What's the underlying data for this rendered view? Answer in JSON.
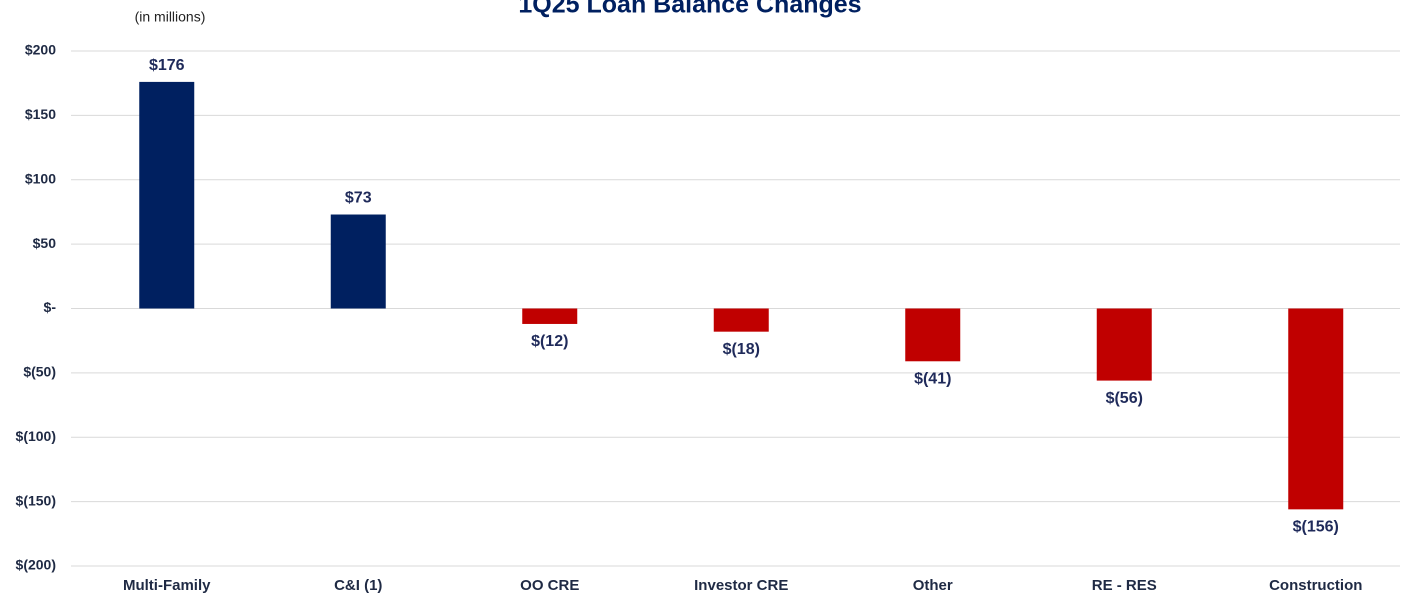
{
  "chart_data": {
    "type": "bar",
    "title": "1Q25 Loan Balance Changes",
    "subtitle": "(in millions)",
    "categories": [
      "Multi-Family",
      "C&I (1)",
      "OO CRE",
      "Investor CRE",
      "Other",
      "RE - RES",
      "Construction"
    ],
    "values": [
      176,
      73,
      -12,
      -18,
      -41,
      -56,
      -156
    ],
    "value_labels": [
      "$176",
      "$73",
      "$(12)",
      "$(18)",
      "$(41)",
      "$(56)",
      "$(156)"
    ],
    "color": "#002060",
    "negative_color": "#c00000",
    "ylim": [
      -200,
      200
    ],
    "yticks": [
      {
        "value": -200,
        "label": "$(200)"
      },
      {
        "value": -150,
        "label": "$(150)"
      },
      {
        "value": -100,
        "label": "$(100)"
      },
      {
        "value": -50,
        "label": "$(50)"
      },
      {
        "value": 0,
        "label": "$-"
      },
      {
        "value": 50,
        "label": "$50"
      },
      {
        "value": 100,
        "label": "$100"
      },
      {
        "value": 150,
        "label": "$150"
      },
      {
        "value": 200,
        "label": "$200"
      }
    ],
    "grid": true
  }
}
